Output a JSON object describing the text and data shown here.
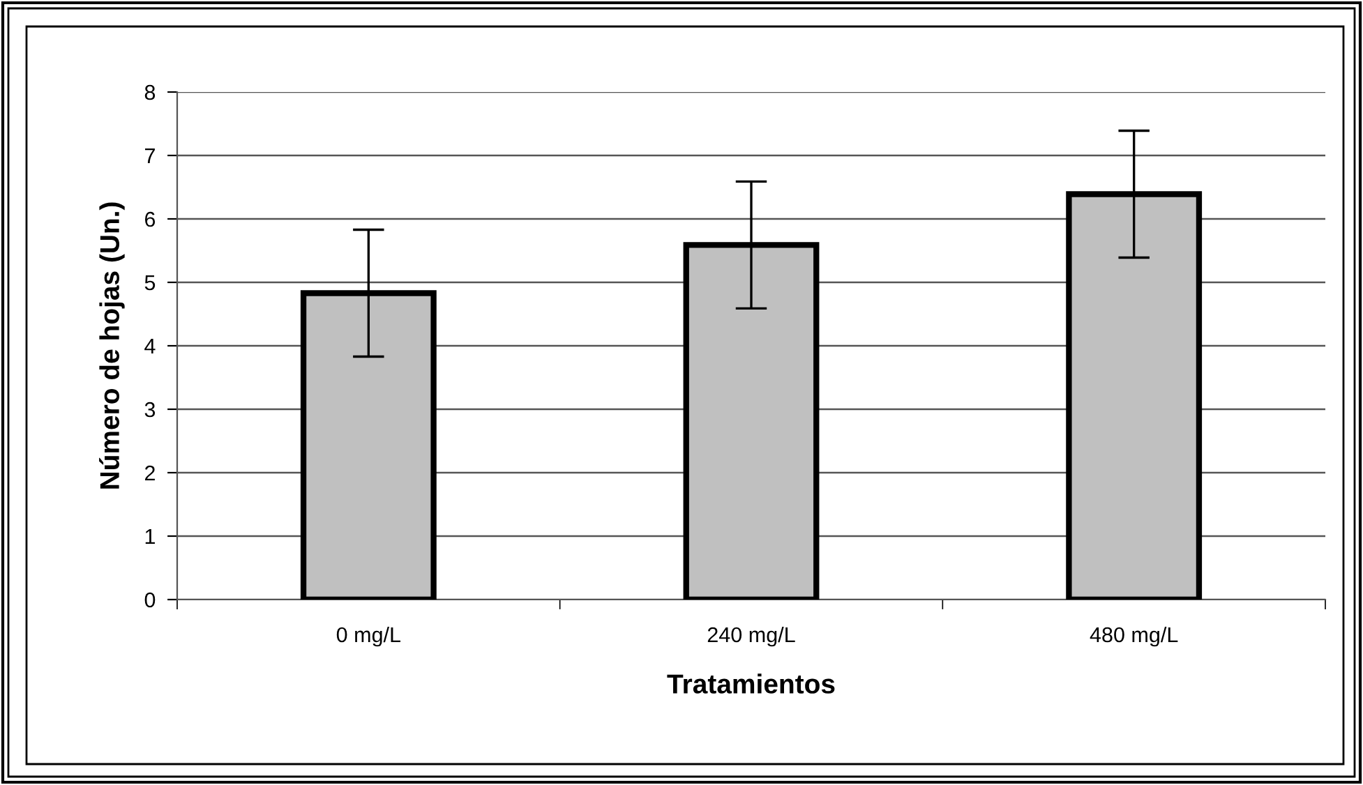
{
  "chart_data": {
    "type": "bar",
    "xlabel": "Tratamientos",
    "ylabel": "Número de hojas (Un.)",
    "categories": [
      "0 mg/L",
      "240 mg/L",
      "480 mg/L"
    ],
    "values": [
      4.83,
      5.59,
      6.39
    ],
    "errors": [
      1.0,
      1.0,
      1.0
    ],
    "color": "#c0c0c0",
    "ylim": [
      0,
      8
    ],
    "yticks": [
      0,
      1,
      2,
      3,
      4,
      5,
      6,
      7,
      8
    ],
    "grid": "y",
    "legend": false
  }
}
